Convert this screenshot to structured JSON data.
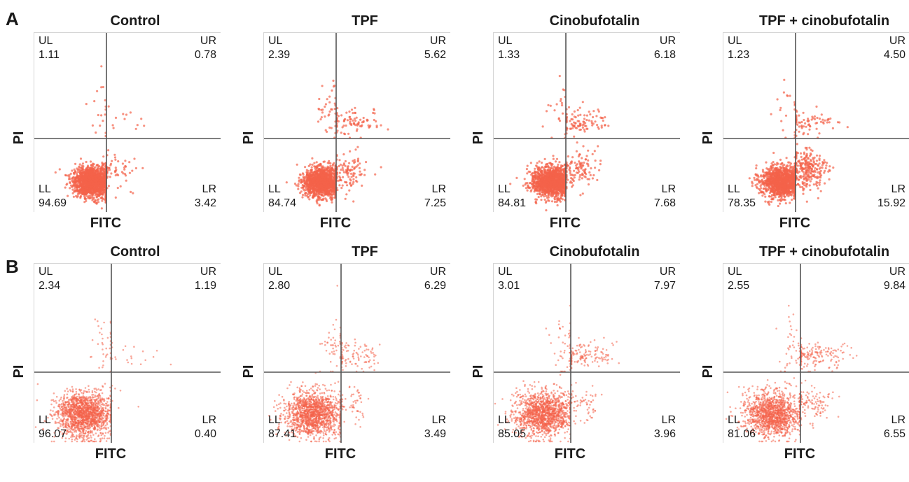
{
  "rows": [
    {
      "label": "A",
      "panels": [
        {
          "title": "Control",
          "quadrants": {
            "UL": "1.11",
            "UR": "0.78",
            "LL": "94.69",
            "LR": "3.42"
          }
        },
        {
          "title": "TPF",
          "quadrants": {
            "UL": "2.39",
            "UR": "5.62",
            "LL": "84.74",
            "LR": "7.25"
          }
        },
        {
          "title": "Cinobufotalin",
          "quadrants": {
            "UL": "1.33",
            "UR": "6.18",
            "LL": "84.81",
            "LR": "7.68"
          }
        },
        {
          "title": "TPF + cinobufotalin",
          "quadrants": {
            "UL": "1.23",
            "UR": "4.50",
            "LL": "78.35",
            "LR": "15.92"
          }
        }
      ]
    },
    {
      "label": "B",
      "panels": [
        {
          "title": "Control",
          "quadrants": {
            "UL": "2.34",
            "UR": "1.19",
            "LL": "96.07",
            "LR": "0.40"
          }
        },
        {
          "title": "TPF",
          "quadrants": {
            "UL": "2.80",
            "UR": "6.29",
            "LL": "87.41",
            "LR": "3.49"
          }
        },
        {
          "title": "Cinobufotalin",
          "quadrants": {
            "UL": "3.01",
            "UR": "7.97",
            "LL": "85.05",
            "LR": "3.96"
          }
        },
        {
          "title": "TPF + cinobufotalin",
          "quadrants": {
            "UL": "2.55",
            "UR": "9.84",
            "LL": "81.06",
            "LR": "6.55"
          }
        }
      ]
    }
  ],
  "quadrant_names": {
    "UL": "UL",
    "UR": "UR",
    "LL": "LL",
    "LR": "LR"
  },
  "axes": {
    "xlabel": "FITC",
    "ylabel": "PI"
  },
  "colors": {
    "dots": "#f4624a",
    "gate": "#555555",
    "frame": "#d6d6d6"
  },
  "chart_data": [
    {
      "type": "scatter",
      "group": "A",
      "title": "Control",
      "xlabel": "FITC",
      "ylabel": "PI",
      "quadrant_percent": {
        "UL": 1.11,
        "UR": 0.78,
        "LL": 94.69,
        "LR": 3.42
      }
    },
    {
      "type": "scatter",
      "group": "A",
      "title": "TPF",
      "xlabel": "FITC",
      "ylabel": "PI",
      "quadrant_percent": {
        "UL": 2.39,
        "UR": 5.62,
        "LL": 84.74,
        "LR": 7.25
      }
    },
    {
      "type": "scatter",
      "group": "A",
      "title": "Cinobufotalin",
      "xlabel": "FITC",
      "ylabel": "PI",
      "quadrant_percent": {
        "UL": 1.33,
        "UR": 6.18,
        "LL": 84.81,
        "LR": 7.68
      }
    },
    {
      "type": "scatter",
      "group": "A",
      "title": "TPF + cinobufotalin",
      "xlabel": "FITC",
      "ylabel": "PI",
      "quadrant_percent": {
        "UL": 1.23,
        "UR": 4.5,
        "LL": 78.35,
        "LR": 15.92
      }
    },
    {
      "type": "scatter",
      "group": "B",
      "title": "Control",
      "xlabel": "FITC",
      "ylabel": "PI",
      "quadrant_percent": {
        "UL": 2.34,
        "UR": 1.19,
        "LL": 96.07,
        "LR": 0.4
      }
    },
    {
      "type": "scatter",
      "group": "B",
      "title": "TPF",
      "xlabel": "FITC",
      "ylabel": "PI",
      "quadrant_percent": {
        "UL": 2.8,
        "UR": 6.29,
        "LL": 87.41,
        "LR": 3.49
      }
    },
    {
      "type": "scatter",
      "group": "B",
      "title": "Cinobufotalin",
      "xlabel": "FITC",
      "ylabel": "PI",
      "quadrant_percent": {
        "UL": 3.01,
        "UR": 7.97,
        "LL": 85.05,
        "LR": 3.96
      }
    },
    {
      "type": "scatter",
      "group": "B",
      "title": "TPF + cinobufotalin",
      "xlabel": "FITC",
      "ylabel": "PI",
      "quadrant_percent": {
        "UL": 2.55,
        "UR": 9.84,
        "LL": 81.06,
        "LR": 6.55
      }
    }
  ]
}
